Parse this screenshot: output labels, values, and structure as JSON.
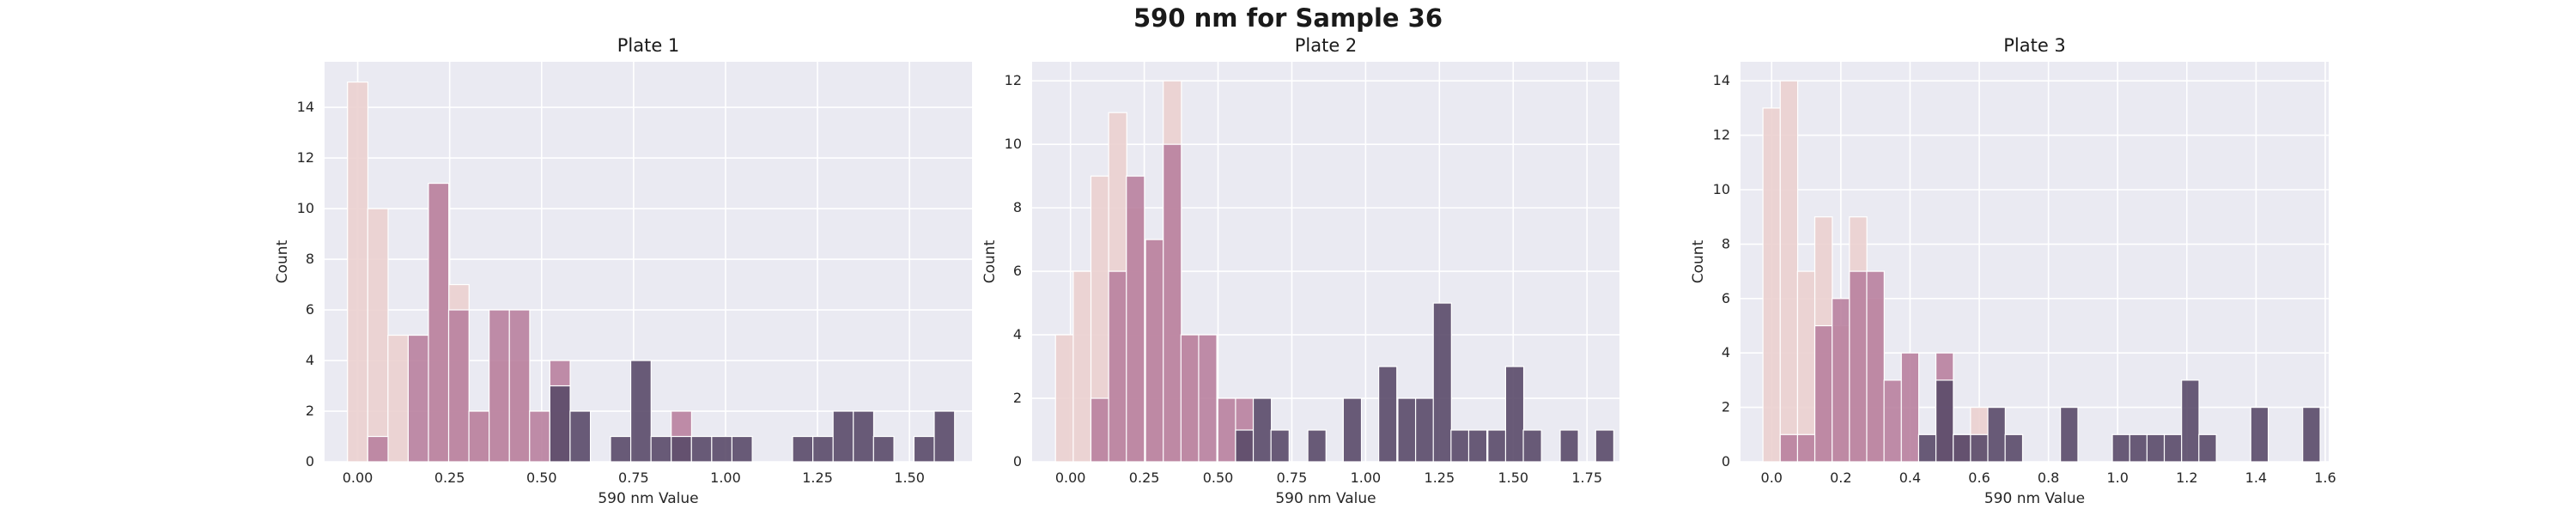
{
  "title": "590 nm for Sample 36",
  "colors": {
    "background": "#eaeaf2",
    "grid": "#ffffff",
    "bins": [
      "#ebd0cf",
      "#b9819f",
      "#5a4a69"
    ]
  },
  "chart_data": [
    {
      "type": "bar",
      "title": "Plate 1",
      "xlabel": "590 nm Value",
      "ylabel": "Count",
      "xlim": [
        -0.09,
        1.67
      ],
      "ylim": [
        0,
        15.8
      ],
      "xticks": [
        0.0,
        0.25,
        0.5,
        0.75,
        1.0,
        1.25,
        1.5
      ],
      "xtick_labels": [
        "0.00",
        "0.25",
        "0.50",
        "0.75",
        "1.00",
        "1.25",
        "1.50"
      ],
      "yticks": [
        0,
        2,
        4,
        6,
        8,
        10,
        12,
        14
      ],
      "bin_width": 0.0554,
      "series": [
        {
          "color_index": 0,
          "bins": [
            [
              0.0,
              15
            ],
            [
              0.055,
              10
            ],
            [
              0.11,
              5
            ],
            [
              0.22,
              11
            ],
            [
              0.275,
              7
            ],
            [
              0.33,
              2
            ],
            [
              0.385,
              4
            ],
            [
              0.44,
              4
            ]
          ]
        },
        {
          "color_index": 1,
          "bins": [
            [
              0.055,
              1
            ],
            [
              0.165,
              5
            ],
            [
              0.22,
              11
            ],
            [
              0.275,
              6
            ],
            [
              0.33,
              2
            ],
            [
              0.385,
              6
            ],
            [
              0.44,
              6
            ],
            [
              0.495,
              2
            ],
            [
              0.55,
              4
            ],
            [
              0.88,
              2
            ]
          ]
        },
        {
          "color_index": 2,
          "bins": [
            [
              0.55,
              3
            ],
            [
              0.605,
              2
            ],
            [
              0.715,
              1
            ],
            [
              0.77,
              4
            ],
            [
              0.825,
              1
            ],
            [
              0.88,
              1
            ],
            [
              0.935,
              1
            ],
            [
              0.99,
              1
            ],
            [
              1.045,
              1
            ],
            [
              1.21,
              1
            ],
            [
              1.265,
              1
            ],
            [
              1.32,
              2
            ],
            [
              1.375,
              2
            ],
            [
              1.43,
              1
            ],
            [
              1.54,
              1
            ],
            [
              1.595,
              2
            ]
          ]
        }
      ]
    },
    {
      "type": "bar",
      "title": "Plate 2",
      "xlabel": "590 nm Value",
      "ylabel": "Count",
      "xlim": [
        -0.13,
        1.86
      ],
      "ylim": [
        0,
        12.6
      ],
      "xticks": [
        0.0,
        0.25,
        0.5,
        0.75,
        1.0,
        1.25,
        1.5,
        1.75
      ],
      "xtick_labels": [
        "0.00",
        "0.25",
        "0.50",
        "0.75",
        "1.00",
        "1.25",
        "1.50",
        "1.75"
      ],
      "yticks": [
        0,
        2,
        4,
        6,
        8,
        10,
        12
      ],
      "bin_width": 0.0615,
      "series": [
        {
          "color_index": 0,
          "bins": [
            [
              -0.02,
              4
            ],
            [
              0.04,
              6
            ],
            [
              0.1,
              9
            ],
            [
              0.16,
              11
            ],
            [
              0.22,
              8
            ],
            [
              0.285,
              7
            ],
            [
              0.345,
              12
            ],
            [
              0.405,
              4
            ]
          ]
        },
        {
          "color_index": 1,
          "bins": [
            [
              0.1,
              2
            ],
            [
              0.16,
              6
            ],
            [
              0.22,
              9
            ],
            [
              0.285,
              7
            ],
            [
              0.345,
              10
            ],
            [
              0.405,
              4
            ],
            [
              0.465,
              4
            ],
            [
              0.53,
              2
            ],
            [
              0.59,
              2
            ]
          ]
        },
        {
          "color_index": 2,
          "bins": [
            [
              0.59,
              1
            ],
            [
              0.65,
              2
            ],
            [
              0.71,
              1
            ],
            [
              0.835,
              1
            ],
            [
              0.955,
              2
            ],
            [
              1.075,
              3
            ],
            [
              1.14,
              2
            ],
            [
              1.2,
              2
            ],
            [
              1.26,
              5
            ],
            [
              1.32,
              1
            ],
            [
              1.38,
              1
            ],
            [
              1.445,
              1
            ],
            [
              1.505,
              3
            ],
            [
              1.565,
              1
            ],
            [
              1.69,
              1
            ],
            [
              1.81,
              1
            ]
          ]
        }
      ]
    },
    {
      "type": "bar",
      "title": "Plate 3",
      "xlabel": "590 nm Value",
      "ylabel": "Count",
      "xlim": [
        -0.09,
        1.61
      ],
      "ylim": [
        0,
        14.7
      ],
      "xticks": [
        0.0,
        0.2,
        0.4,
        0.6,
        0.8,
        1.0,
        1.2,
        1.4,
        1.6
      ],
      "xtick_labels": [
        "0.0",
        "0.2",
        "0.4",
        "0.6",
        "0.8",
        "1.0",
        "1.2",
        "1.4",
        "1.6"
      ],
      "yticks": [
        0,
        2,
        4,
        6,
        8,
        10,
        12,
        14
      ],
      "bin_width": 0.0505,
      "series": [
        {
          "color_index": 0,
          "bins": [
            [
              0.0,
              13
            ],
            [
              0.05,
              14
            ],
            [
              0.1,
              7
            ],
            [
              0.15,
              9
            ],
            [
              0.2,
              5
            ],
            [
              0.25,
              9
            ],
            [
              0.3,
              6
            ],
            [
              0.6,
              2
            ]
          ]
        },
        {
          "color_index": 1,
          "bins": [
            [
              0.05,
              1
            ],
            [
              0.1,
              1
            ],
            [
              0.15,
              5
            ],
            [
              0.2,
              6
            ],
            [
              0.25,
              7
            ],
            [
              0.3,
              7
            ],
            [
              0.35,
              3
            ],
            [
              0.4,
              4
            ],
            [
              0.5,
              4
            ],
            [
              0.55,
              1
            ]
          ]
        },
        {
          "color_index": 2,
          "bins": [
            [
              0.45,
              1
            ],
            [
              0.5,
              3
            ],
            [
              0.55,
              1
            ],
            [
              0.6,
              1
            ],
            [
              0.65,
              2
            ],
            [
              0.7,
              1
            ],
            [
              0.86,
              2
            ],
            [
              1.01,
              1
            ],
            [
              1.06,
              1
            ],
            [
              1.11,
              1
            ],
            [
              1.16,
              1
            ],
            [
              1.21,
              3
            ],
            [
              1.26,
              1
            ],
            [
              1.41,
              2
            ],
            [
              1.56,
              2
            ]
          ]
        }
      ]
    }
  ]
}
